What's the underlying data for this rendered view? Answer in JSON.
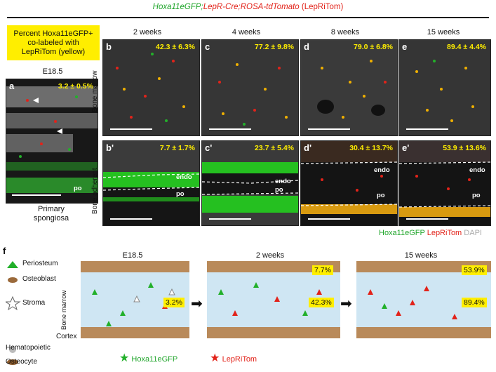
{
  "header": {
    "gene1": "Hoxa11eGFP",
    "sep": ";",
    "gene2": "LepR-Cre",
    "gene3": "ROSA-tdTomato",
    "abbrev": "(LepRiTom)"
  },
  "legend_box": {
    "line1": "Percent Hoxa11eGFP+",
    "line2": "co-labeled with",
    "line3": "LepRiTom (yellow)"
  },
  "panel_a": {
    "timepoint": "E18.5",
    "letter": "a",
    "percent": "3.2 ± 0.5%",
    "po_label": "po",
    "caption_line1": "Primary",
    "caption_line2": "spongiosa"
  },
  "columns": [
    "2 weeks",
    "4 weeks",
    "8 weeks",
    "15 weeks"
  ],
  "row_labels": {
    "top": "Bone marrow",
    "bottom": "Bone adherent"
  },
  "top_panels": [
    {
      "letter": "b",
      "percent": "42.3 ± 6.3%"
    },
    {
      "letter": "c",
      "percent": "77.2 ± 9.8%"
    },
    {
      "letter": "d",
      "percent": "79.0 ± 6.8%"
    },
    {
      "letter": "e",
      "percent": "89.4 ± 4.4%"
    }
  ],
  "bottom_panels": [
    {
      "letter": "b'",
      "percent": "7.7 ± 1.7%",
      "labels": [
        "endo",
        "po"
      ]
    },
    {
      "letter": "c'",
      "percent": "23.7 ± 5.4%",
      "labels": [
        "endo",
        "po"
      ]
    },
    {
      "letter": "d'",
      "percent": "30.4 ± 13.7%",
      "labels": [
        "endo",
        "po"
      ]
    },
    {
      "letter": "e'",
      "percent": "53.9 ± 13.6%",
      "labels": [
        "endo",
        "po"
      ]
    }
  ],
  "channel_legend": {
    "green": "Hoxa11eGFP",
    "red": "LepRiTom",
    "gray": "DAPI"
  },
  "schematic": {
    "letter": "f",
    "legend": [
      "Periosteum",
      "Osteoblast",
      "Stroma",
      "Hematopoietic",
      "Osteocyte"
    ],
    "zones": {
      "marrow": "Bone marrow",
      "cortex": "Cortex"
    },
    "stages": [
      {
        "title": "E18.5",
        "badges": [
          "3.2%"
        ]
      },
      {
        "title": "2 weeks",
        "badges": [
          "7.7%",
          "42.3%"
        ]
      },
      {
        "title": "15 weeks",
        "badges": [
          "53.9%",
          "89.4%"
        ]
      }
    ],
    "cell_legend": {
      "green": "Hoxa11eGFP",
      "red": "LepRiTom"
    }
  },
  "colors": {
    "gfp": "#22b02a",
    "tom": "#e2231a",
    "highlight": "#ffee00",
    "marrow_bg": "#cfe6f3"
  }
}
